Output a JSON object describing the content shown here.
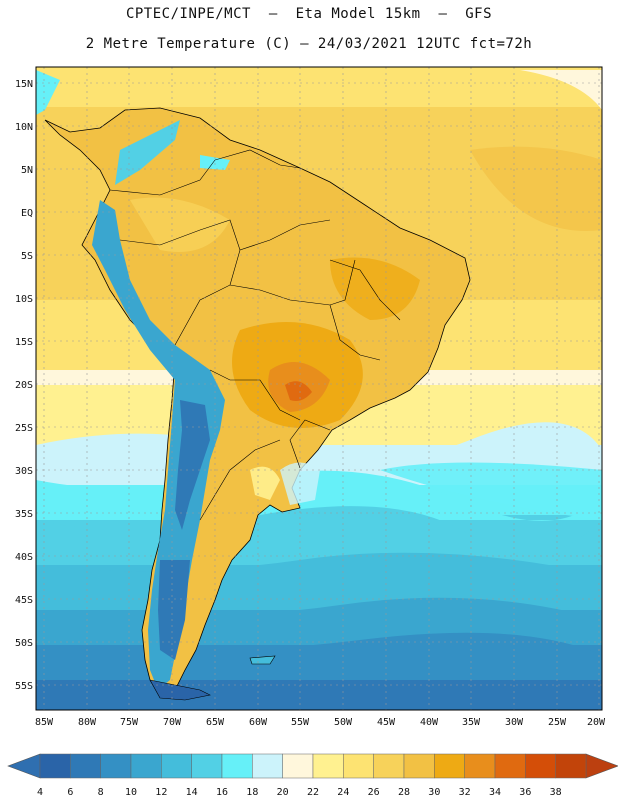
{
  "header": {
    "line1": "CPTEC/INPE/MCT  –  Eta Model 15km  –  GFS",
    "line2": "2 Metre Temperature (C) – 24/03/2021 12UTC fct=72h"
  },
  "map": {
    "lat_labels": [
      "15N",
      "10N",
      "5N",
      "EQ",
      "5S",
      "10S",
      "15S",
      "20S",
      "25S",
      "30S",
      "35S",
      "40S",
      "45S",
      "50S",
      "55S"
    ],
    "lon_labels": [
      "85W",
      "80W",
      "75W",
      "70W",
      "65W",
      "60W",
      "55W",
      "50W",
      "45W",
      "40W",
      "35W",
      "30W",
      "25W",
      "20W"
    ]
  },
  "legend": {
    "values": [
      "4",
      "6",
      "8",
      "10",
      "12",
      "14",
      "16",
      "18",
      "20",
      "22",
      "24",
      "26",
      "28",
      "30",
      "32",
      "34",
      "36",
      "38"
    ],
    "colors": [
      "#2a64a8",
      "#2f79b6",
      "#3490c4",
      "#3aa6cf",
      "#44bddb",
      "#52d0e5",
      "#66f0f8",
      "#ccf3fb",
      "#fff7dc",
      "#fff190",
      "#fde372",
      "#f7d25a",
      "#f2c144",
      "#eeaa14",
      "#e88e1c",
      "#e06a10",
      "#d44e08",
      "#c2440a"
    ],
    "arrow_left_color": "#2f6fb0",
    "arrow_right_color": "#bc4010"
  }
}
